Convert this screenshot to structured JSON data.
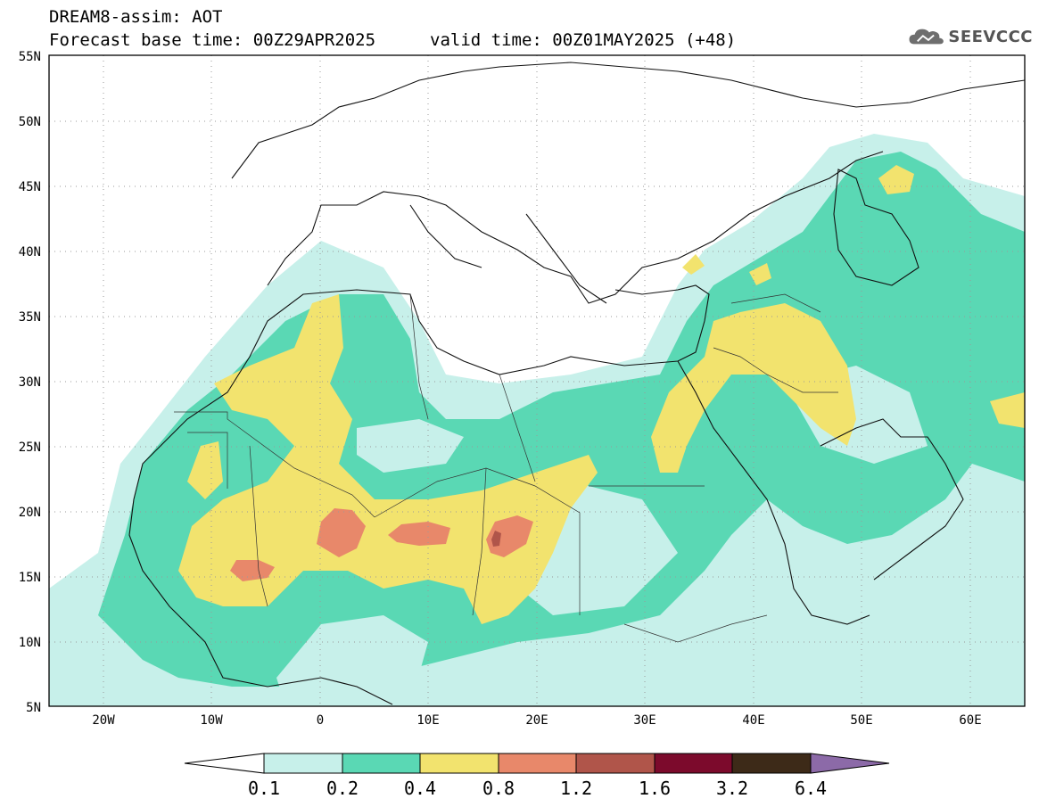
{
  "header": {
    "product": "DREAM8-assim: AOT",
    "base_time": "Forecast base time: 00Z29APR2025",
    "valid_time": "valid time: 00Z01MAY2025 (+48)"
  },
  "logo": {
    "text": "SEEVCCC",
    "icon": "cloud-icon"
  },
  "map": {
    "lat_labels": [
      "55N",
      "50N",
      "45N",
      "40N",
      "35N",
      "30N",
      "25N",
      "20N",
      "15N",
      "10N",
      "5N"
    ],
    "lon_labels": [
      "20W",
      "10W",
      "0",
      "10E",
      "20E",
      "30E",
      "40E",
      "50E",
      "60E"
    ],
    "grid": true
  },
  "colorbar": {
    "labels": [
      "0.1",
      "0.2",
      "0.4",
      "0.8",
      "1.2",
      "1.6",
      "3.2",
      "6.4"
    ],
    "colors": [
      "#ffffff",
      "#c7f0ea",
      "#5ad8b4",
      "#f2e36e",
      "#e8886a",
      "#b0554a",
      "#7c0a2c",
      "#3d2a18",
      "#8c6aa8"
    ]
  }
}
